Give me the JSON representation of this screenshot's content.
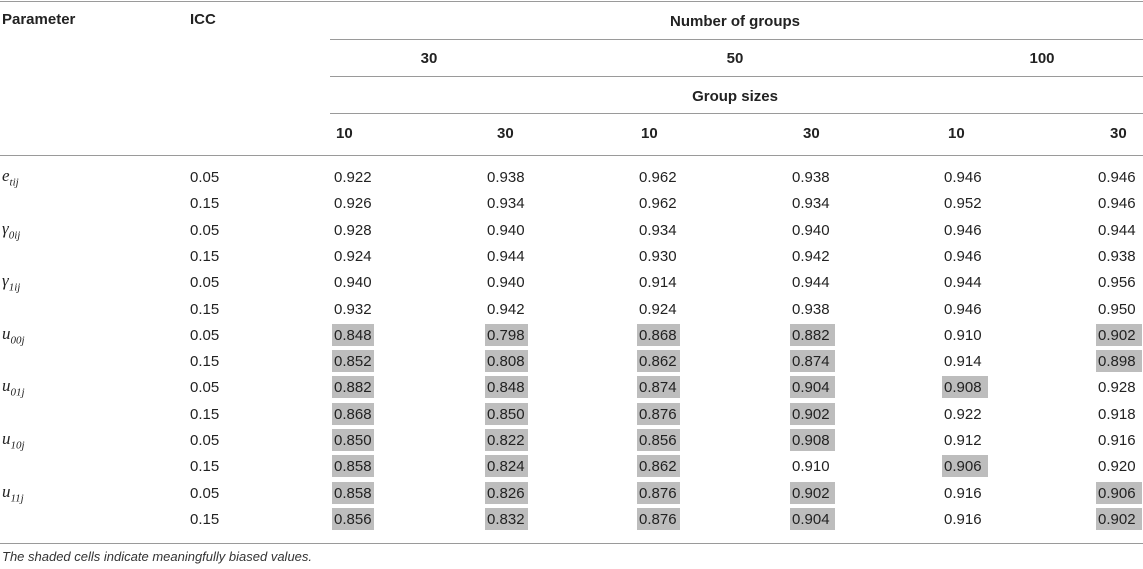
{
  "table": {
    "headers": {
      "parameter": "Parameter",
      "icc": "ICC",
      "number_of_groups": "Number of groups",
      "group_counts": [
        "30",
        "50",
        "100"
      ],
      "group_sizes": "Group sizes",
      "sizes": [
        "10",
        "30",
        "10",
        "30",
        "10",
        "30"
      ]
    },
    "rows": [
      {
        "param_base": "e",
        "param_sub": "tij",
        "icc": "0.05",
        "values": [
          "0.922",
          "0.938",
          "0.962",
          "0.938",
          "0.946",
          "0.946"
        ],
        "shaded": [
          false,
          false,
          false,
          false,
          false,
          false
        ]
      },
      {
        "param_base": "",
        "param_sub": "",
        "icc": "0.15",
        "values": [
          "0.926",
          "0.934",
          "0.962",
          "0.934",
          "0.952",
          "0.946"
        ],
        "shaded": [
          false,
          false,
          false,
          false,
          false,
          false
        ]
      },
      {
        "param_base": "γ",
        "param_sub": "0ij",
        "icc": "0.05",
        "values": [
          "0.928",
          "0.940",
          "0.934",
          "0.940",
          "0.946",
          "0.944"
        ],
        "shaded": [
          false,
          false,
          false,
          false,
          false,
          false
        ]
      },
      {
        "param_base": "",
        "param_sub": "",
        "icc": "0.15",
        "values": [
          "0.924",
          "0.944",
          "0.930",
          "0.942",
          "0.946",
          "0.938"
        ],
        "shaded": [
          false,
          false,
          false,
          false,
          false,
          false
        ]
      },
      {
        "param_base": "γ",
        "param_sub": "1ij",
        "icc": "0.05",
        "values": [
          "0.940",
          "0.940",
          "0.914",
          "0.944",
          "0.944",
          "0.956"
        ],
        "shaded": [
          false,
          false,
          false,
          false,
          false,
          false
        ]
      },
      {
        "param_base": "",
        "param_sub": "",
        "icc": "0.15",
        "values": [
          "0.932",
          "0.942",
          "0.924",
          "0.938",
          "0.946",
          "0.950"
        ],
        "shaded": [
          false,
          false,
          false,
          false,
          false,
          false
        ]
      },
      {
        "param_base": "u",
        "param_sub": "00j",
        "icc": "0.05",
        "values": [
          "0.848",
          "0.798",
          "0.868",
          "0.882",
          "0.910",
          "0.902"
        ],
        "shaded": [
          true,
          true,
          true,
          true,
          false,
          true
        ]
      },
      {
        "param_base": "",
        "param_sub": "",
        "icc": "0.15",
        "values": [
          "0.852",
          "0.808",
          "0.862",
          "0.874",
          "0.914",
          "0.898"
        ],
        "shaded": [
          true,
          true,
          true,
          true,
          false,
          true
        ]
      },
      {
        "param_base": "u",
        "param_sub": "01j",
        "icc": "0.05",
        "values": [
          "0.882",
          "0.848",
          "0.874",
          "0.904",
          "0.908",
          "0.928"
        ],
        "shaded": [
          true,
          true,
          true,
          true,
          true,
          false
        ]
      },
      {
        "param_base": "",
        "param_sub": "",
        "icc": "0.15",
        "values": [
          "0.868",
          "0.850",
          "0.876",
          "0.902",
          "0.922",
          "0.918"
        ],
        "shaded": [
          true,
          true,
          true,
          true,
          false,
          false
        ]
      },
      {
        "param_base": "u",
        "param_sub": "10j",
        "icc": "0.05",
        "values": [
          "0.850",
          "0.822",
          "0.856",
          "0.908",
          "0.912",
          "0.916"
        ],
        "shaded": [
          true,
          true,
          true,
          true,
          false,
          false
        ]
      },
      {
        "param_base": "",
        "param_sub": "",
        "icc": "0.15",
        "values": [
          "0.858",
          "0.824",
          "0.862",
          "0.910",
          "0.906",
          "0.920"
        ],
        "shaded": [
          true,
          true,
          true,
          false,
          true,
          false
        ]
      },
      {
        "param_base": "u",
        "param_sub": "11j",
        "icc": "0.05",
        "values": [
          "0.858",
          "0.826",
          "0.876",
          "0.902",
          "0.916",
          "0.906"
        ],
        "shaded": [
          true,
          true,
          true,
          true,
          false,
          true
        ]
      },
      {
        "param_base": "",
        "param_sub": "",
        "icc": "0.15",
        "values": [
          "0.856",
          "0.832",
          "0.876",
          "0.904",
          "0.916",
          "0.902"
        ],
        "shaded": [
          true,
          true,
          true,
          true,
          false,
          true
        ]
      }
    ],
    "footnote": "The shaded cells indicate meaningfully biased values."
  }
}
